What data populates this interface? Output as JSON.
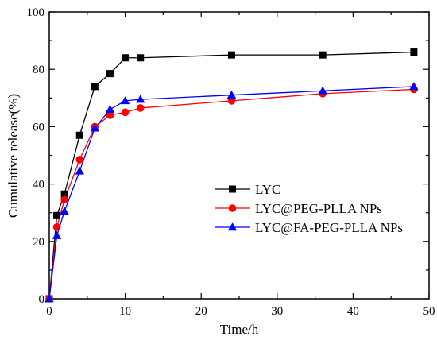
{
  "chart_data": {
    "type": "line",
    "xlabel": "Time/h",
    "ylabel": "Cumulative release(%)",
    "xlim": [
      0,
      50
    ],
    "ylim": [
      0,
      100
    ],
    "xticks": [
      "0",
      "10",
      "20",
      "30",
      "40",
      "50"
    ],
    "yticks": [
      "0",
      "20",
      "40",
      "60",
      "80",
      "100"
    ],
    "grid": false,
    "legend_position": "center-right",
    "series": [
      {
        "name": "LYC",
        "color": "#000000",
        "marker": "square",
        "x": [
          0,
          1,
          2,
          4,
          6,
          8,
          10,
          12,
          24,
          36,
          48
        ],
        "y": [
          0,
          29,
          36.5,
          57,
          74,
          78.5,
          84,
          84,
          85,
          85,
          86
        ]
      },
      {
        "name": "LYC@PEG-PLLA NPs",
        "color": "#ff0000",
        "marker": "circle",
        "x": [
          0,
          1,
          2,
          4,
          6,
          8,
          10,
          12,
          24,
          36,
          48
        ],
        "y": [
          0,
          25,
          34.5,
          48.5,
          60,
          64,
          65,
          66.5,
          69,
          71.5,
          73
        ]
      },
      {
        "name": "LYC@FA-PEG-PLLA NPs",
        "color": "#0000ff",
        "marker": "triangle",
        "x": [
          0,
          1,
          2,
          4,
          6,
          8,
          10,
          12,
          24,
          36,
          48
        ],
        "y": [
          0,
          22,
          30.5,
          44.5,
          59.5,
          66,
          69,
          69.5,
          71,
          72.5,
          74
        ]
      }
    ]
  }
}
